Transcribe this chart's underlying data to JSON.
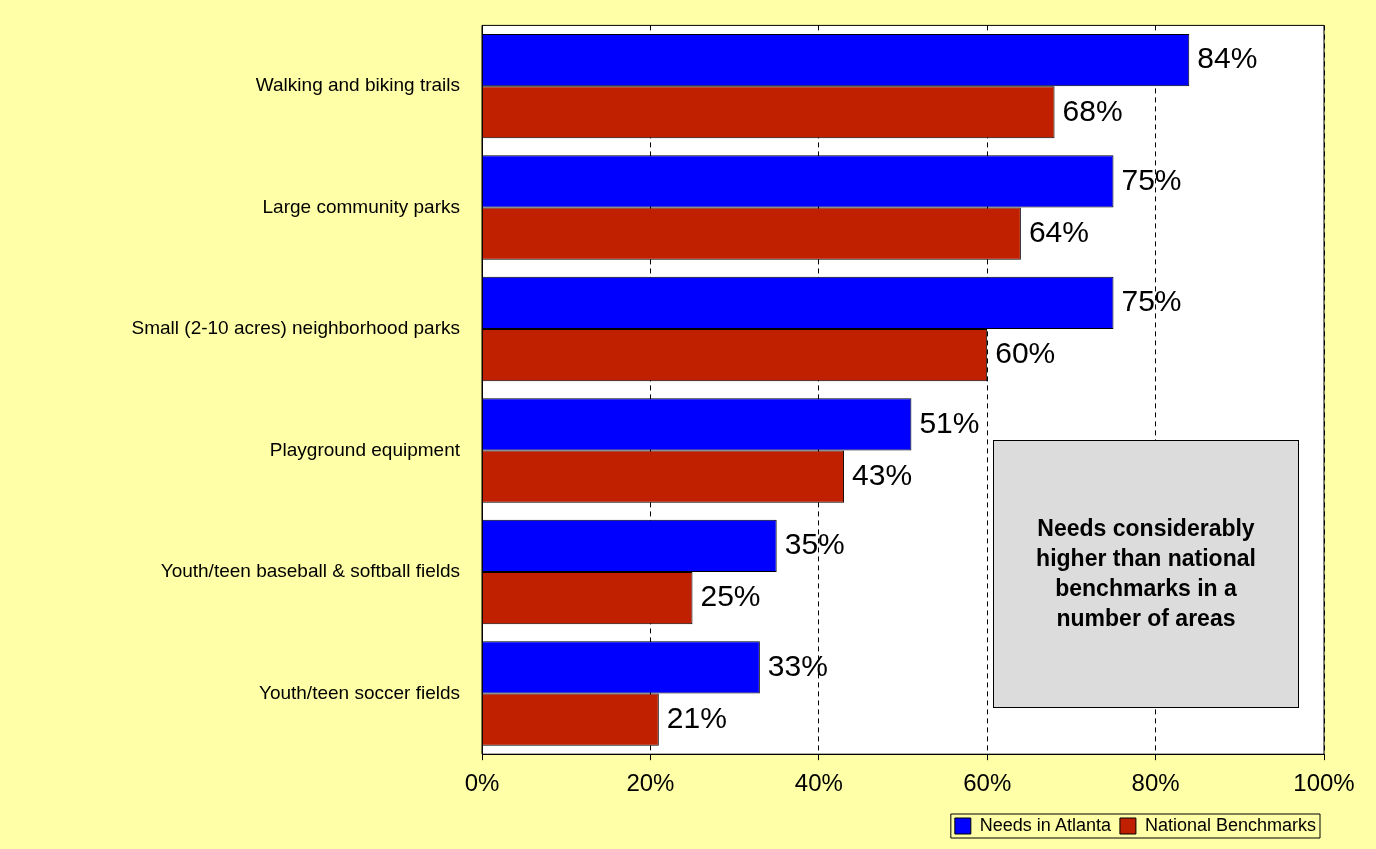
{
  "chart_data": {
    "type": "bar",
    "orientation": "horizontal",
    "categories": [
      "Walking and biking trails",
      "Large community parks",
      "Small (2-10 acres) neighborhood parks",
      "Playground equipment",
      "Youth/teen baseball & softball fields",
      "Youth/teen soccer fields"
    ],
    "series": [
      {
        "name": "Needs in Atlanta",
        "color": "#0000ff",
        "values": [
          84,
          75,
          75,
          51,
          35,
          33
        ],
        "value_labels": [
          "84%",
          "75%",
          "75%",
          "51%",
          "35%",
          "33%"
        ]
      },
      {
        "name": "National Benchmarks",
        "color": "#c02000",
        "values": [
          68,
          64,
          60,
          43,
          25,
          21
        ],
        "value_labels": [
          "68%",
          "64%",
          "60%",
          "43%",
          "25%",
          "21%"
        ]
      }
    ],
    "xlim": [
      0,
      100
    ],
    "xticks": [
      {
        "value": 0,
        "label": "0%"
      },
      {
        "value": 20,
        "label": "20%"
      },
      {
        "value": 40,
        "label": "40%"
      },
      {
        "value": 60,
        "label": "60%"
      },
      {
        "value": 80,
        "label": "80%"
      },
      {
        "value": 100,
        "label": "100%"
      }
    ],
    "grid": "x",
    "legend": "bottom right",
    "annotations": [
      "Needs considerably higher than national benchmarks in a number of areas"
    ]
  }
}
